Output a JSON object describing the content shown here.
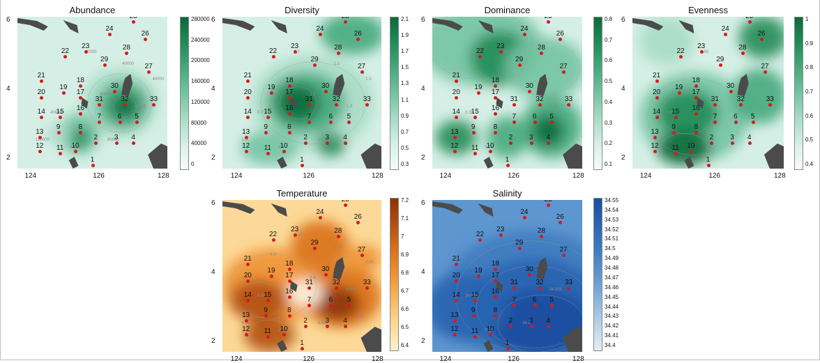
{
  "panels": [
    {
      "id": "abundance",
      "title": "Abundance",
      "palette": "green",
      "colorbar_ticks": [
        "280000",
        "240000",
        "200000",
        "160000",
        "120000",
        "80000",
        "40000",
        "0"
      ],
      "x_ticks": [
        "124",
        "126",
        "128"
      ],
      "y_ticks": [
        "6",
        "4",
        "2"
      ],
      "show_x_ticks": true,
      "iso_labels": [
        "40000",
        "40000",
        "40000",
        "80000",
        "40000",
        "40000",
        "80000",
        "120000",
        "40000"
      ]
    },
    {
      "id": "diversity",
      "title": "Diversity",
      "palette": "green",
      "colorbar_ticks": [
        "2.1",
        "1.9",
        "1.7",
        "1.5",
        "1.3",
        "1.1",
        "0.9",
        "0.7",
        "0.5",
        "0.3"
      ],
      "x_ticks": [
        "124",
        "126",
        "128"
      ],
      "y_ticks": [
        "6",
        "4",
        "2"
      ],
      "show_x_ticks": true,
      "iso_labels": [
        "0.7",
        "0.7",
        "1.3",
        "1.1",
        "1.3",
        "1.5",
        "1.3",
        "1.5",
        "1.1"
      ]
    },
    {
      "id": "dominance",
      "title": "Dominance",
      "palette": "green",
      "colorbar_ticks": [
        "0.8",
        "0.7",
        "0.6",
        "0.5",
        "0.4",
        "0.3",
        "0.2",
        "0.1"
      ],
      "x_ticks": [
        "124",
        "126",
        "128"
      ],
      "y_ticks": [
        "6",
        "4",
        "2"
      ],
      "show_x_ticks": true,
      "iso_labels": [
        "0.35",
        "0.35",
        "0.35",
        "0.35",
        "0.35"
      ]
    },
    {
      "id": "evenness",
      "title": "Evenness",
      "palette": "green",
      "colorbar_ticks": [
        "1",
        "0.9",
        "0.8",
        "0.7",
        "0.6",
        "0.5",
        "0.4"
      ],
      "x_ticks": [
        "124",
        "126",
        "128"
      ],
      "y_ticks": [
        "6",
        "4",
        "2"
      ],
      "show_x_ticks": true,
      "iso_labels": [
        "0.65",
        "0.65"
      ]
    },
    {
      "id": "temperature",
      "title": "Temperature",
      "palette": "orange",
      "colorbar_ticks": [
        "7.2",
        "7.1",
        "7",
        "6.9",
        "6.8",
        "6.7",
        "6.6",
        "6.5",
        "6.4"
      ],
      "x_ticks": [
        "124",
        "126",
        "128"
      ],
      "y_ticks": [
        "6",
        "4",
        "2"
      ],
      "show_x_ticks": true,
      "iso_labels": [
        "6.65",
        "6.65",
        "6.65",
        "6.65",
        "6.85",
        "6.85",
        "6.6",
        "6.65",
        "6.85",
        "6.9",
        "6.8"
      ]
    },
    {
      "id": "salinity",
      "title": "Salinity",
      "palette": "blue",
      "colorbar_ticks": [
        "34.55",
        "34.54",
        "34.53",
        "34.52",
        "34.51",
        "34.5",
        "34.49",
        "34.48",
        "34.47",
        "34.46",
        "34.45",
        "34.44",
        "34.43",
        "34.42",
        "34.41",
        "34.4"
      ],
      "x_ticks": [
        "124",
        "126",
        "128"
      ],
      "y_ticks": [
        "6",
        "4",
        "2"
      ],
      "show_x_ticks": true,
      "iso_labels": [
        "34.5",
        "34.505",
        "34.505",
        "34.5",
        "34.5"
      ]
    }
  ],
  "stations": [
    {
      "id": "1",
      "lon": 125.8,
      "lat": 1.8
    },
    {
      "id": "2",
      "lon": 125.9,
      "lat": 2.45
    },
    {
      "id": "3",
      "lon": 126.5,
      "lat": 2.45
    },
    {
      "id": "4",
      "lon": 127.0,
      "lat": 2.45
    },
    {
      "id": "5",
      "lon": 127.1,
      "lat": 3.05
    },
    {
      "id": "6",
      "lon": 126.6,
      "lat": 3.05
    },
    {
      "id": "7",
      "lon": 126.0,
      "lat": 3.05
    },
    {
      "id": "8",
      "lon": 125.45,
      "lat": 2.75
    },
    {
      "id": "9",
      "lon": 124.8,
      "lat": 2.75
    },
    {
      "id": "10",
      "lon": 125.3,
      "lat": 2.2
    },
    {
      "id": "11",
      "lon": 124.85,
      "lat": 2.15
    },
    {
      "id": "12",
      "lon": 124.25,
      "lat": 2.2
    },
    {
      "id": "13",
      "lon": 124.25,
      "lat": 2.6
    },
    {
      "id": "14",
      "lon": 124.3,
      "lat": 3.2
    },
    {
      "id": "15",
      "lon": 124.85,
      "lat": 3.2
    },
    {
      "id": "16",
      "lon": 125.45,
      "lat": 3.3
    },
    {
      "id": "17",
      "lon": 125.45,
      "lat": 3.75
    },
    {
      "id": "18",
      "lon": 125.45,
      "lat": 4.1
    },
    {
      "id": "19",
      "lon": 124.95,
      "lat": 3.9
    },
    {
      "id": "20",
      "lon": 124.3,
      "lat": 3.75
    },
    {
      "id": "21",
      "lon": 124.3,
      "lat": 4.25
    },
    {
      "id": "22",
      "lon": 125.0,
      "lat": 4.95
    },
    {
      "id": "23",
      "lon": 125.6,
      "lat": 5.1
    },
    {
      "id": "24",
      "lon": 126.3,
      "lat": 5.6
    },
    {
      "id": "25",
      "lon": 127.0,
      "lat": 5.95
    },
    {
      "id": "26",
      "lon": 127.35,
      "lat": 5.45
    },
    {
      "id": "27",
      "lon": 127.45,
      "lat": 4.5
    },
    {
      "id": "28",
      "lon": 126.8,
      "lat": 5.05
    },
    {
      "id": "29",
      "lon": 126.15,
      "lat": 4.7
    },
    {
      "id": "30",
      "lon": 126.45,
      "lat": 3.95
    },
    {
      "id": "31",
      "lon": 126.0,
      "lat": 3.55
    },
    {
      "id": "32",
      "lon": 126.75,
      "lat": 3.55
    },
    {
      "id": "33",
      "lon": 127.6,
      "lat": 3.55
    }
  ],
  "legend_colors": {
    "green": [
      "#f7fcfa",
      "#d6efe6",
      "#a8dcc8",
      "#74c3a3",
      "#45a97d",
      "#218c58",
      "#0a6a3a"
    ],
    "orange": [
      "#fdf1cf",
      "#fcd998",
      "#f8b85f",
      "#ee9234",
      "#d9701b",
      "#b34f10",
      "#8a3406"
    ],
    "blue": [
      "#1a4ea0",
      "#2864b0",
      "#3d7bc0",
      "#5e96cf",
      "#8ab4dd",
      "#b9d3ea",
      "#e3eef8"
    ]
  }
}
